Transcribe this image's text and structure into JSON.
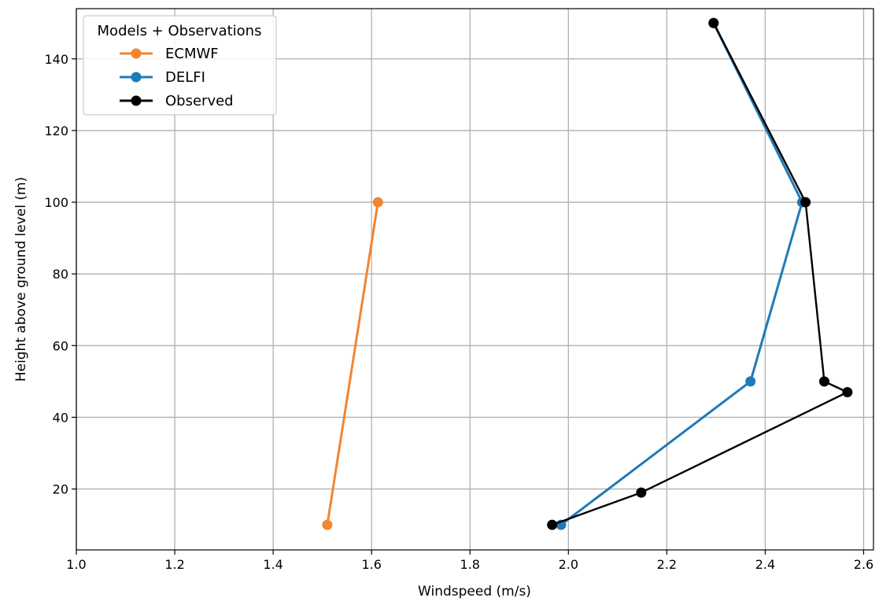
{
  "chart_data": {
    "type": "line",
    "title": "",
    "xlabel": "Windspeed (m/s)",
    "ylabel": "Height above ground level (m)",
    "xlim": [
      1.0,
      2.62
    ],
    "ylim": [
      3,
      154
    ],
    "xticks": [
      1.0,
      1.2,
      1.4,
      1.6,
      1.8,
      2.0,
      2.2,
      2.4,
      2.6
    ],
    "xtick_labels": [
      "1.0",
      "1.2",
      "1.4",
      "1.6",
      "1.8",
      "2.0",
      "2.2",
      "2.4",
      "2.6"
    ],
    "yticks": [
      20,
      40,
      60,
      80,
      100,
      120,
      140
    ],
    "ytick_labels": [
      "20",
      "40",
      "60",
      "80",
      "100",
      "120",
      "140"
    ],
    "grid": true,
    "legend": {
      "title": "Models + Observations",
      "placement": "top-left"
    },
    "series": [
      {
        "name": "ECMWF",
        "color": "#f28530",
        "points": [
          {
            "x": 1.51,
            "y": 10
          },
          {
            "x": 1.613,
            "y": 100
          }
        ]
      },
      {
        "name": "DELFI",
        "color": "#1f7ab8",
        "points": [
          {
            "x": 1.985,
            "y": 10
          },
          {
            "x": 2.37,
            "y": 50
          },
          {
            "x": 2.475,
            "y": 100
          },
          {
            "x": 2.295,
            "y": 150
          }
        ]
      },
      {
        "name": "Observed",
        "color": "#000000",
        "points": [
          {
            "x": 1.967,
            "y": 10
          },
          {
            "x": 2.148,
            "y": 19
          },
          {
            "x": 2.567,
            "y": 47
          },
          {
            "x": 2.52,
            "y": 50
          },
          {
            "x": 2.482,
            "y": 100
          },
          {
            "x": 2.295,
            "y": 150
          }
        ]
      }
    ]
  }
}
